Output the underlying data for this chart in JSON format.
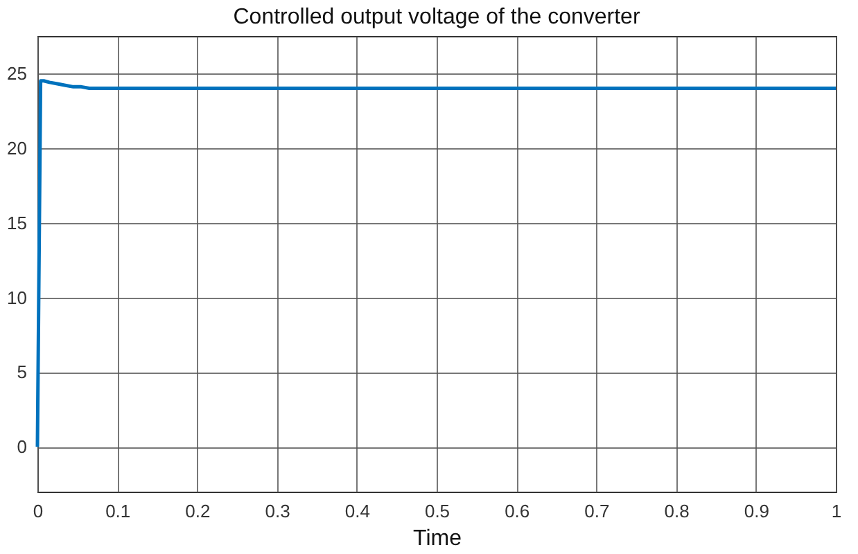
{
  "chart_data": {
    "type": "line",
    "title": "Controlled output voltage of the converter",
    "xlabel": "Time",
    "x": [
      0,
      0.004,
      0.008,
      0.015,
      0.025,
      0.035,
      0.045,
      0.055,
      0.065,
      0.08,
      0.1,
      0.2,
      0.3,
      0.4,
      0.5,
      0.6,
      0.7,
      0.8,
      0.9,
      1
    ],
    "series": [
      {
        "color": "#0072bd",
        "values": [
          0,
          24.5,
          24.5,
          24.4,
          24.3,
          24.2,
          24.1,
          24.1,
          24.0,
          24.0,
          24.0,
          24.0,
          24.0,
          24.0,
          24.0,
          24.0,
          24.0,
          24.0,
          24.0,
          24.0
        ]
      }
    ],
    "xlim": [
      0,
      1
    ],
    "xticks": [
      0,
      0.1,
      0.2,
      0.3,
      0.4,
      0.5,
      0.6,
      0.7,
      0.8,
      0.9,
      1
    ],
    "ylim": [
      -3,
      27.5
    ],
    "yticks": [
      0,
      5,
      10,
      15,
      20,
      25
    ],
    "grid": true,
    "line_style": "solid"
  }
}
